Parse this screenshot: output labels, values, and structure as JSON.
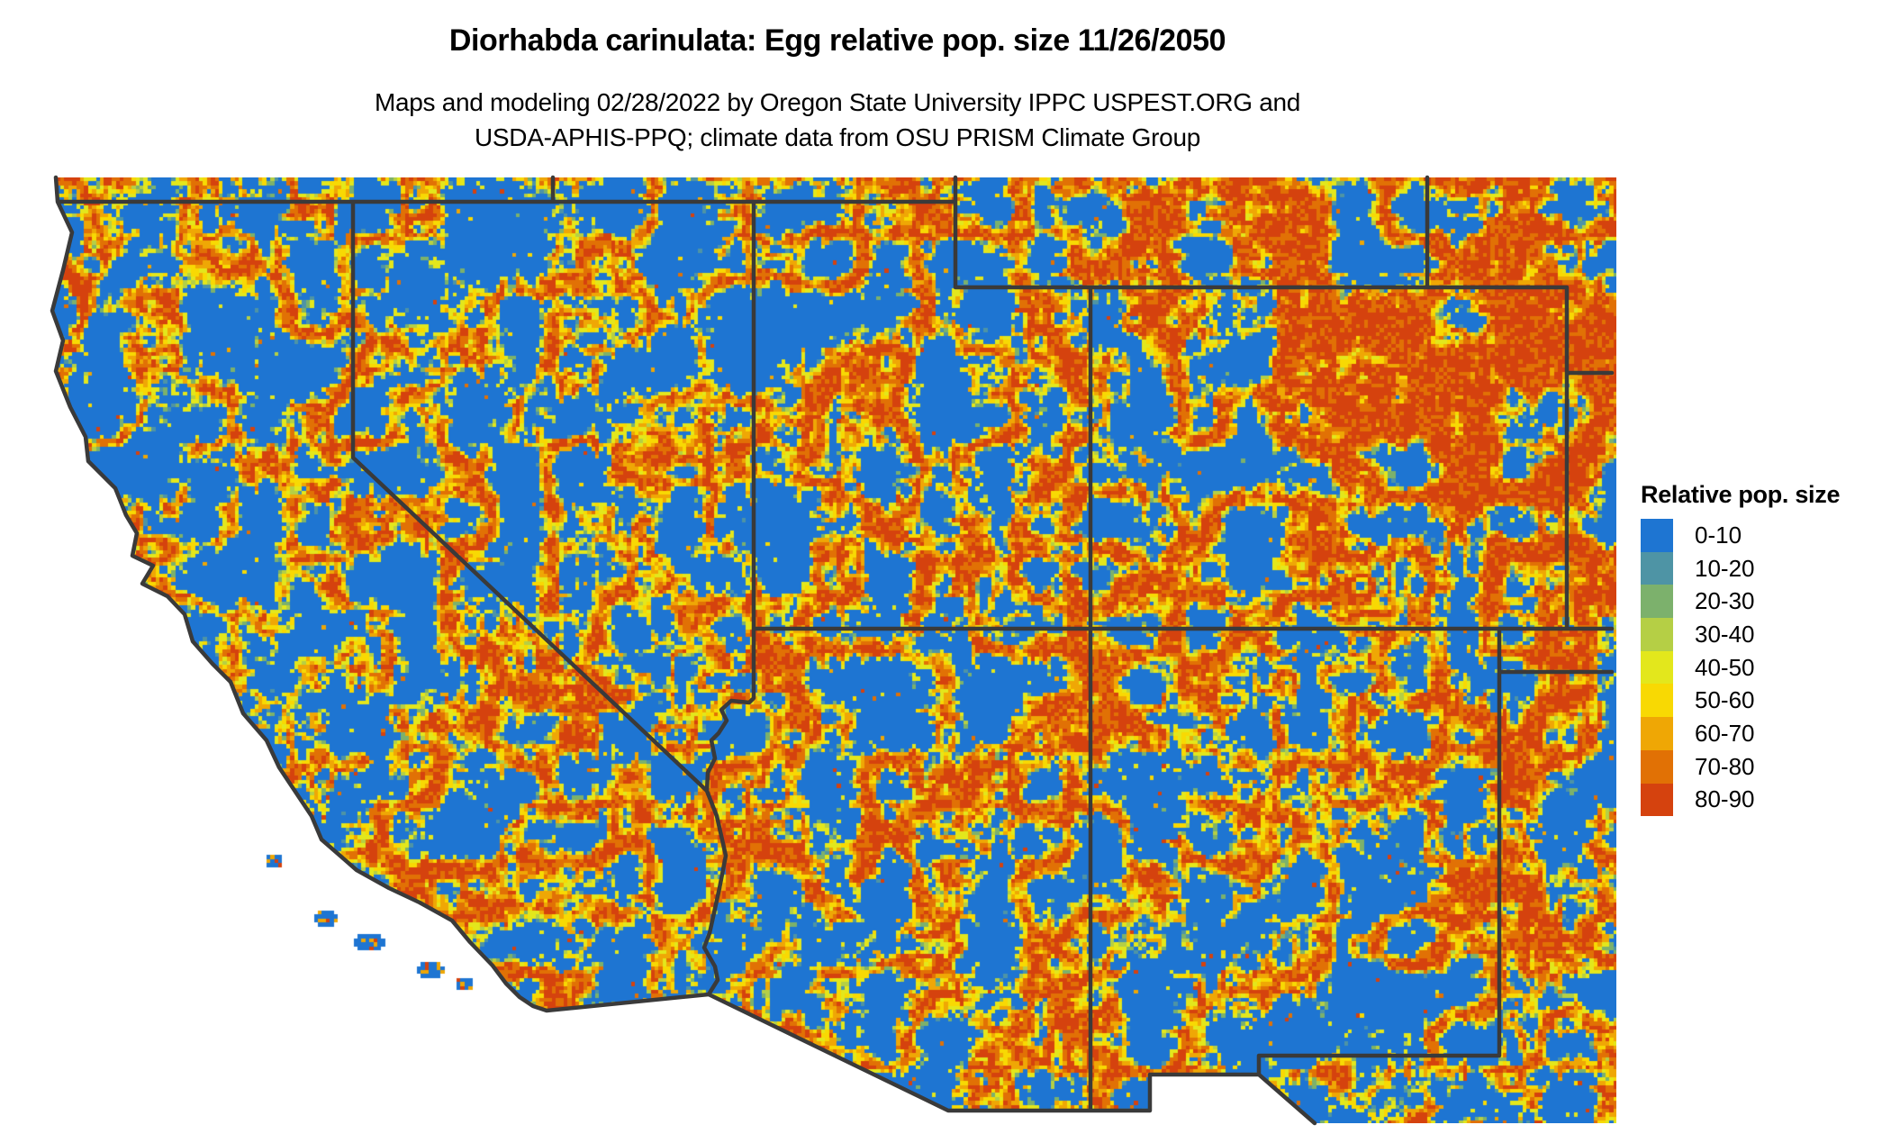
{
  "header": {
    "title": "Diorhabda carinulata: Egg relative pop. size 11/26/2050",
    "subtitle_line1": "Maps and modeling 02/28/2022 by Oregon State University IPPC USPEST.ORG and",
    "subtitle_line2": "USDA-APHIS-PPQ; climate data from OSU PRISM Climate Group"
  },
  "legend": {
    "title": "Relative pop. size",
    "entries": [
      {
        "label": "0-10",
        "color": "#1E75D2"
      },
      {
        "label": "10-20",
        "color": "#4E94A5"
      },
      {
        "label": "20-30",
        "color": "#7CB16C"
      },
      {
        "label": "30-40",
        "color": "#B5CF45"
      },
      {
        "label": "40-50",
        "color": "#E3E71C"
      },
      {
        "label": "50-60",
        "color": "#F8D903"
      },
      {
        "label": "60-70",
        "color": "#EFA705"
      },
      {
        "label": "70-80",
        "color": "#E17105"
      },
      {
        "label": "80-90",
        "color": "#D5420E"
      }
    ]
  },
  "map": {
    "region": "Southwestern United States raster grid with state borders",
    "border_color": "#3A3A3A",
    "ocean_color": "#FFFFFF",
    "dominant_color": "#1E75D2"
  }
}
